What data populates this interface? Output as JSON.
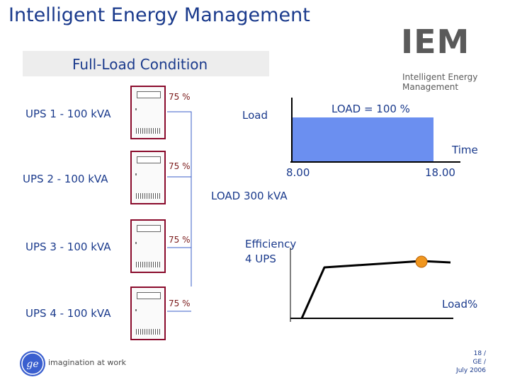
{
  "slide": {
    "title": "Intelligent Energy Management",
    "banner": "Full-Load Condition"
  },
  "logo": {
    "brand": "IEM",
    "subtitle_line1": "Intelligent Energy",
    "subtitle_line2": "Management"
  },
  "ups_units": [
    {
      "label": "UPS 1 - 100 kVA",
      "load_pct": "75 %"
    },
    {
      "label": "UPS 2 - 100 kVA",
      "load_pct": "75 %"
    },
    {
      "label": "UPS 3 - 100 kVA",
      "load_pct": "75 %"
    },
    {
      "label": "UPS 4 - 100 kVA",
      "load_pct": "75 %"
    }
  ],
  "load_chart": {
    "y_label": "Load",
    "value_label": "LOAD = 100 %",
    "x_label": "Time",
    "start_time": "8.00",
    "end_time": "18.00",
    "fill_color": "#6b8ff0"
  },
  "summary": {
    "total_load": "LOAD 300 kVA"
  },
  "efficiency_chart": {
    "y_label_line1": "Efficiency",
    "y_label_line2": "4 UPS",
    "x_label": "Load%",
    "marker_color": "#f0961e"
  },
  "footer": {
    "tagline": "imagination at work",
    "line1": "18 /",
    "line2": "GE /",
    "line3": "July 2006"
  },
  "colors": {
    "text": "#1a3a8c",
    "cabinet_border": "#8a0b2c",
    "connector": "#3b5fc9"
  }
}
